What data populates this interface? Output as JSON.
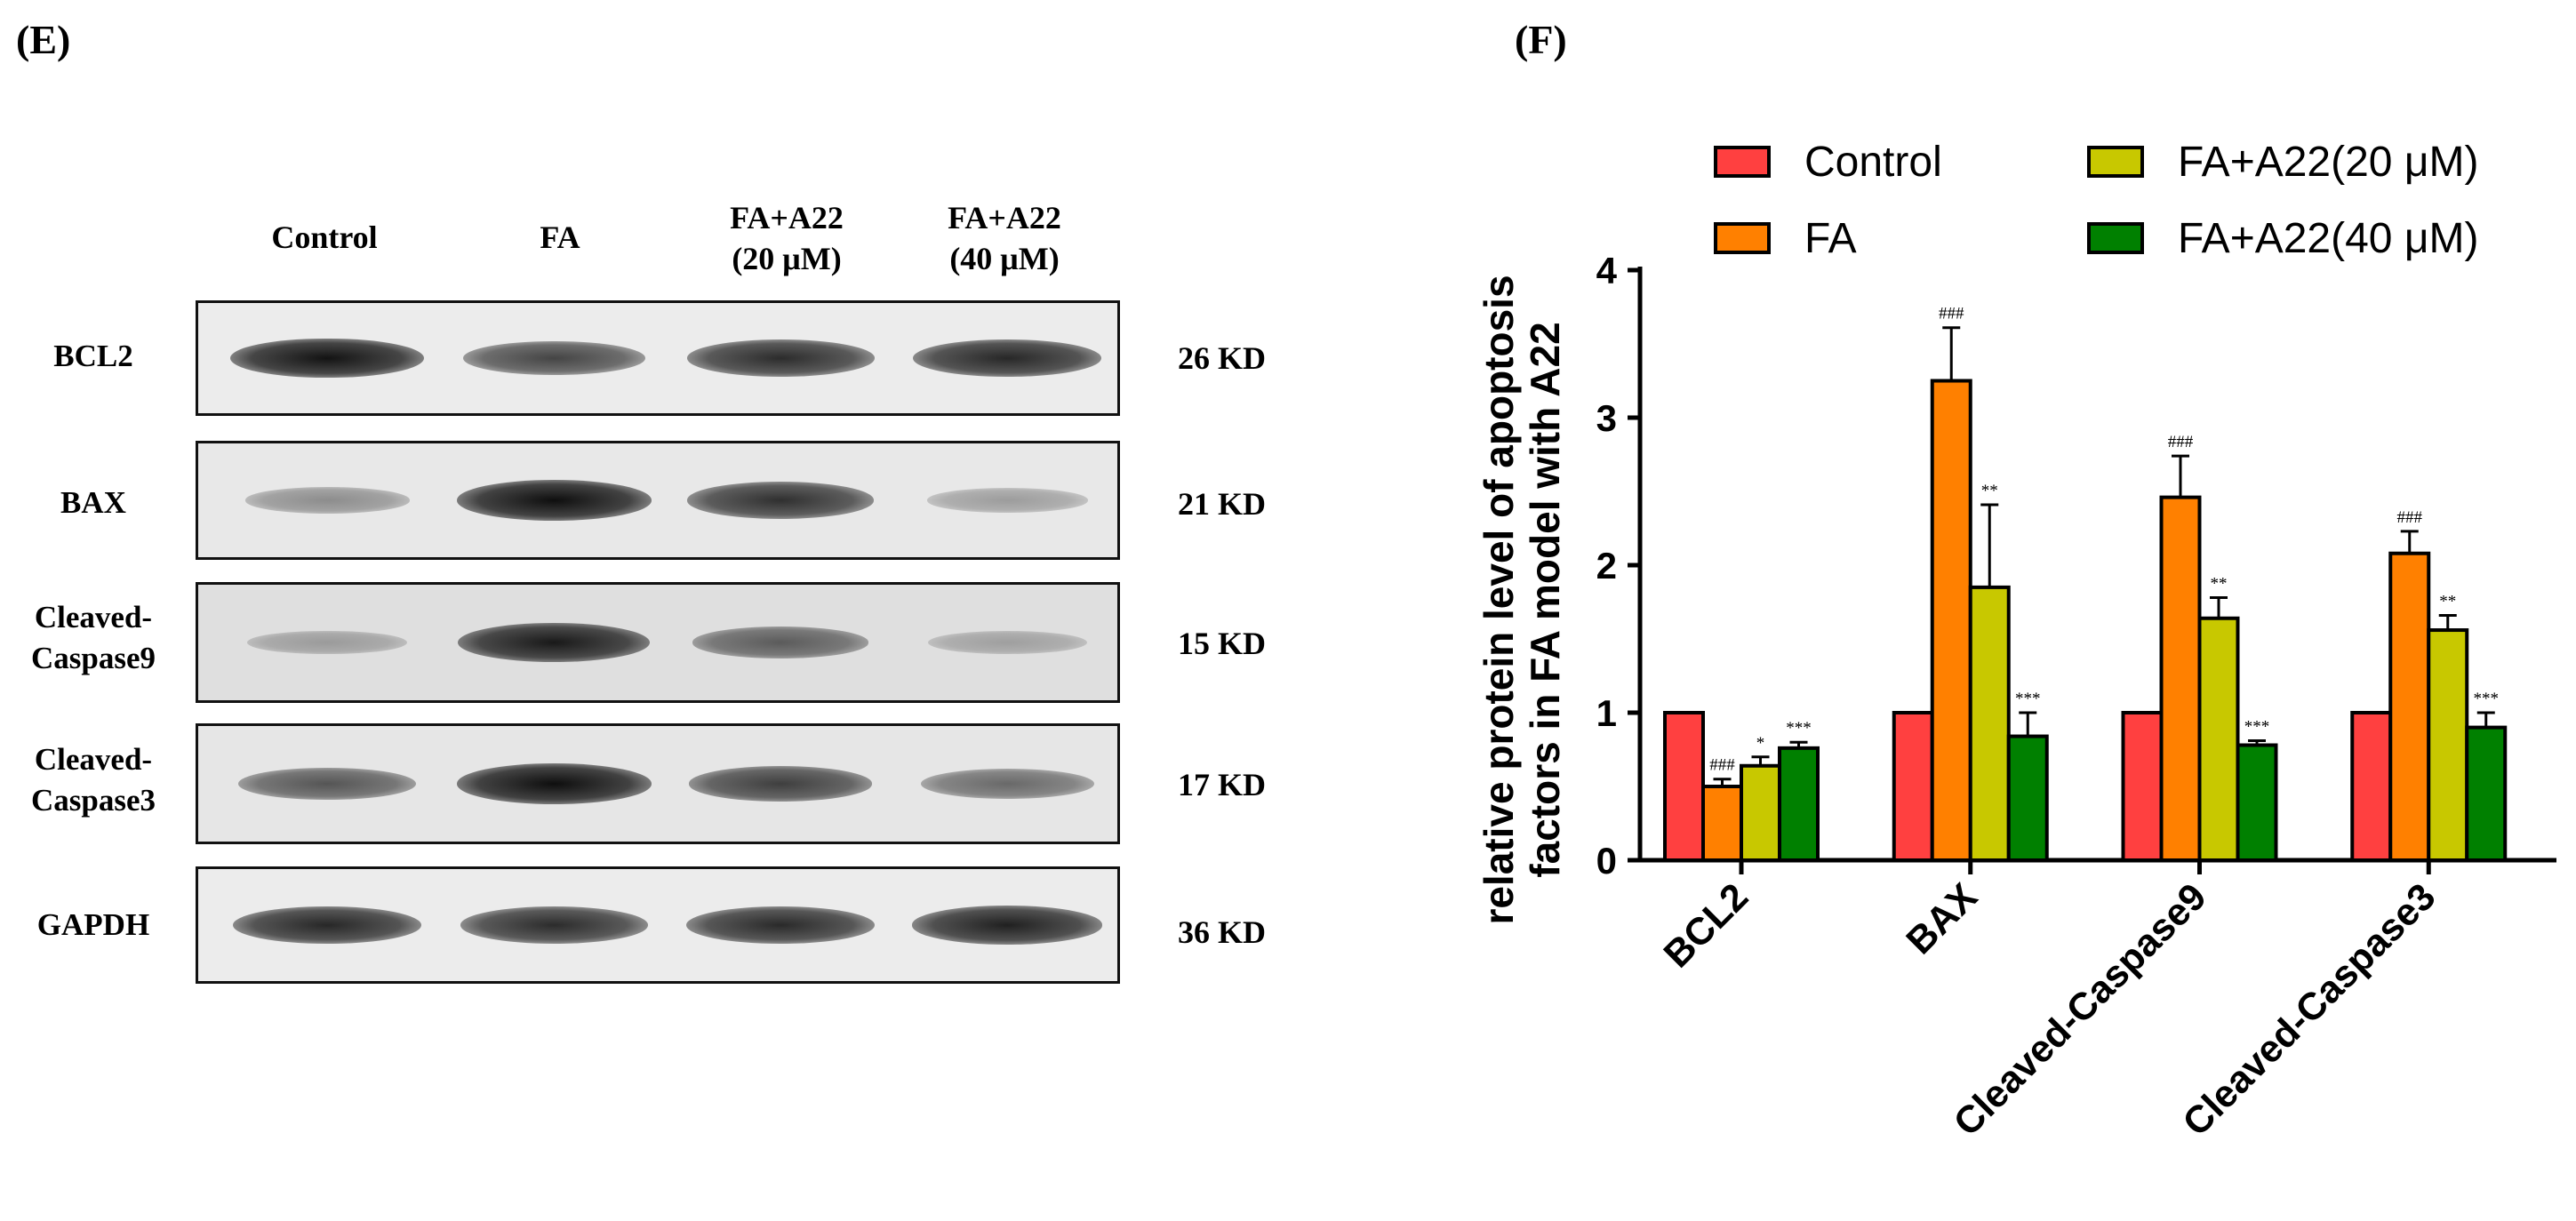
{
  "panels": {
    "left_label": "(E)",
    "right_label": "(F)"
  },
  "blot": {
    "lanes": [
      {
        "line1": "Control",
        "line2": ""
      },
      {
        "line1": "FA",
        "line2": ""
      },
      {
        "line1": "FA+A22",
        "line2": "(20 μM)"
      },
      {
        "line1": "FA+A22",
        "line2": "(40 μM)"
      }
    ],
    "rows": [
      {
        "line1": "BCL2",
        "line2": "",
        "kd": "26 KD",
        "band_intensity": [
          0.95,
          0.7,
          0.82,
          0.85
        ],
        "background": 0.05
      },
      {
        "line1": "BAX",
        "line2": "",
        "kd": "21 KD",
        "band_intensity": [
          0.3,
          0.98,
          0.8,
          0.22
        ],
        "background": 0.08
      },
      {
        "line1": "Cleaved-",
        "line2": "Caspase9",
        "kd": "15 KD",
        "band_intensity": [
          0.2,
          0.92,
          0.55,
          0.18
        ],
        "background": 0.16
      },
      {
        "line1": "Cleaved-",
        "line2": "Caspase3",
        "kd": "17 KD",
        "band_intensity": [
          0.6,
          0.98,
          0.72,
          0.5
        ],
        "background": 0.1
      },
      {
        "line1": "GAPDH",
        "line2": "",
        "kd": "36 KD",
        "band_intensity": [
          0.85,
          0.82,
          0.84,
          0.88
        ],
        "background": 0.05
      }
    ]
  },
  "chart_data": {
    "type": "bar",
    "ylabel_line1": "relative protein level of apoptosis",
    "ylabel_line2": "factors in FA model with A22",
    "xlabel": "",
    "ylim": [
      0,
      4
    ],
    "yticks": [
      0,
      1,
      2,
      3,
      4
    ],
    "categories": [
      "BCL2",
      "BAX",
      "Cleaved-Caspase9",
      "Cleaved-Caspase3"
    ],
    "legend_position": "top",
    "series": [
      {
        "name": "Control",
        "color": "#ff4040",
        "values": [
          1.0,
          1.0,
          1.0,
          1.0
        ],
        "errors": [
          0,
          0,
          0,
          0
        ],
        "sig": [
          "",
          "",
          "",
          ""
        ]
      },
      {
        "name": "FA",
        "color": "#ff8000",
        "values": [
          0.5,
          3.25,
          2.46,
          2.08
        ],
        "errors": [
          0.05,
          0.36,
          0.28,
          0.15
        ],
        "sig": [
          "###",
          "###",
          "###",
          "###"
        ]
      },
      {
        "name": "FA+A22(20 μM)",
        "color": "#c8c800",
        "values": [
          0.64,
          1.85,
          1.64,
          1.56
        ],
        "errors": [
          0.06,
          0.56,
          0.14,
          0.1
        ],
        "sig": [
          "*",
          "**",
          "**",
          "**"
        ]
      },
      {
        "name": "FA+A22(40 μM)",
        "color": "#008000",
        "values": [
          0.76,
          0.84,
          0.78,
          0.9
        ],
        "errors": [
          0.04,
          0.16,
          0.03,
          0.1
        ],
        "sig": [
          "***",
          "***",
          "***",
          "***"
        ]
      }
    ]
  }
}
